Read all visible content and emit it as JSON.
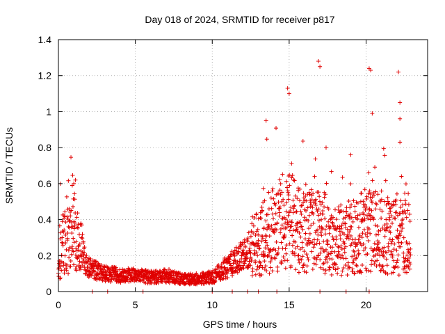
{
  "chart_data": {
    "type": "scatter",
    "title": "Day 018 of 2024, SRMTID for receiver p817",
    "xlabel": "GPS time / hours",
    "ylabel": "SRMTID / TECUs",
    "xlim": [
      0,
      24
    ],
    "ylim": [
      0,
      1.4
    ],
    "xticks": [
      0,
      5,
      10,
      15,
      20
    ],
    "xtick_labels": [
      "0",
      "5",
      "10",
      "15",
      "20"
    ],
    "yticks": [
      0,
      0.2,
      0.4,
      0.6,
      0.8,
      1.0,
      1.2,
      1.4
    ],
    "ytick_labels": [
      "0",
      "0.2",
      "0.4",
      "0.6",
      "0.8",
      "1",
      "1.2",
      "1.4"
    ],
    "grid": true,
    "marker": "+",
    "marker_color": "#e00000",
    "approximate_profile": [
      {
        "x": 0.0,
        "y": 0.2
      },
      {
        "x": 0.25,
        "y": 0.25
      },
      {
        "x": 0.5,
        "y": 0.32
      },
      {
        "x": 0.75,
        "y": 0.28
      },
      {
        "x": 1.0,
        "y": 0.35
      },
      {
        "x": 1.5,
        "y": 0.22
      },
      {
        "x": 2.0,
        "y": 0.13
      },
      {
        "x": 3.0,
        "y": 0.1
      },
      {
        "x": 4.0,
        "y": 0.09
      },
      {
        "x": 5.0,
        "y": 0.09
      },
      {
        "x": 6.0,
        "y": 0.08
      },
      {
        "x": 7.0,
        "y": 0.09
      },
      {
        "x": 8.0,
        "y": 0.07
      },
      {
        "x": 9.0,
        "y": 0.07
      },
      {
        "x": 10.0,
        "y": 0.08
      },
      {
        "x": 11.0,
        "y": 0.14
      },
      {
        "x": 12.0,
        "y": 0.2
      },
      {
        "x": 13.0,
        "y": 0.28
      },
      {
        "x": 14.0,
        "y": 0.35
      },
      {
        "x": 15.0,
        "y": 0.4
      },
      {
        "x": 16.0,
        "y": 0.32
      },
      {
        "x": 17.0,
        "y": 0.35
      },
      {
        "x": 18.0,
        "y": 0.28
      },
      {
        "x": 19.0,
        "y": 0.3
      },
      {
        "x": 20.0,
        "y": 0.34
      },
      {
        "x": 21.0,
        "y": 0.32
      },
      {
        "x": 22.0,
        "y": 0.3
      },
      {
        "x": 22.9,
        "y": 0.3
      }
    ],
    "notable_points": [
      {
        "x": 0.9,
        "y": 0.59
      },
      {
        "x": 1.0,
        "y": 0.6
      },
      {
        "x": 13.5,
        "y": 0.95
      },
      {
        "x": 14.9,
        "y": 1.13
      },
      {
        "x": 15.0,
        "y": 1.1
      },
      {
        "x": 16.9,
        "y": 1.28
      },
      {
        "x": 17.0,
        "y": 1.25
      },
      {
        "x": 17.4,
        "y": 0.8
      },
      {
        "x": 19.0,
        "y": 0.76
      },
      {
        "x": 20.2,
        "y": 1.24
      },
      {
        "x": 20.3,
        "y": 1.23
      },
      {
        "x": 20.4,
        "y": 0.99
      },
      {
        "x": 22.1,
        "y": 1.22
      },
      {
        "x": 22.2,
        "y": 1.05
      },
      {
        "x": 22.2,
        "y": 0.96
      },
      {
        "x": 22.2,
        "y": 0.83
      },
      {
        "x": 22.3,
        "y": 0.64
      }
    ],
    "zero_markers": [
      2.2,
      3.2,
      5.5,
      10.0,
      11.3,
      12.3,
      13.0,
      14.2,
      17.0,
      18.7,
      20.2
    ]
  }
}
